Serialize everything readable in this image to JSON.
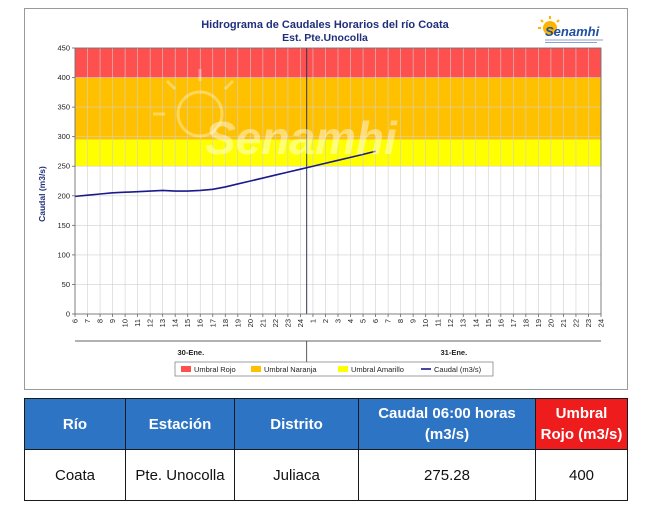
{
  "colors": {
    "rojo": "#ff5050",
    "naranja": "#ffc000",
    "amarillo": "#ffff00",
    "caudal": "#1a1a8c",
    "table_header": "#2e74c5",
    "table_header_red": "#ee1c1c"
  },
  "logo": {
    "text": "Senamhi",
    "icon": "sun-icon"
  },
  "watermark": "Senamhi",
  "chart_data": {
    "type": "line",
    "title": "Hidrograma de Caudales Horarios del río Coata",
    "subtitle": "Est. Pte.Unocolla",
    "ylabel": "Caudal (m3/s)",
    "xlabel": "",
    "ylim": [
      0,
      450
    ],
    "yticks": [
      0,
      50,
      100,
      150,
      200,
      250,
      300,
      350,
      400,
      450
    ],
    "xtick_labels": [
      "6",
      "7",
      "8",
      "9",
      "10",
      "11",
      "12",
      "13",
      "14",
      "15",
      "16",
      "17",
      "18",
      "19",
      "20",
      "21",
      "22",
      "23",
      "24",
      "1",
      "2",
      "3",
      "4",
      "5",
      "6",
      "7",
      "8",
      "9",
      "10",
      "11",
      "12",
      "13",
      "14",
      "15",
      "16",
      "17",
      "18",
      "19",
      "20",
      "21",
      "22",
      "23",
      "24"
    ],
    "day_labels": [
      "30-Ene.",
      "31-Ene."
    ],
    "day_split_index": 19,
    "grid": true,
    "bands": [
      {
        "name": "Umbral Rojo",
        "from": 400,
        "to": 450,
        "color": "#ff5050"
      },
      {
        "name": "Umbral Naranja",
        "from": 295,
        "to": 400,
        "color": "#ffc000"
      },
      {
        "name": "Umbral Amarillo",
        "from": 250,
        "to": 295,
        "color": "#ffff00"
      }
    ],
    "series": [
      {
        "name": "Caudal (m3/s)",
        "color": "#1a1a8c",
        "x_index": [
          0,
          1,
          2,
          3,
          4,
          5,
          6,
          7,
          8,
          9,
          10,
          11,
          12,
          13,
          14,
          15,
          16,
          17,
          18,
          19,
          20,
          21,
          22,
          23,
          24
        ],
        "values": [
          199,
          201,
          203,
          205,
          206,
          207,
          208,
          209,
          208,
          208,
          209,
          211,
          215,
          220,
          225,
          230,
          235,
          240,
          245,
          250,
          255,
          260,
          265,
          270,
          275.28
        ]
      }
    ],
    "legend": {
      "placement": "bottom",
      "entries": [
        "Umbral Rojo",
        "Umbral Naranja",
        "Umbral Amarillo",
        "Caudal (m3/s)"
      ]
    }
  },
  "table": {
    "headers": [
      "Río",
      "Estación",
      "Distrito",
      "Caudal 06:00 horas (m3/s)",
      "Umbral Rojo (m3/s)"
    ],
    "row": [
      "Coata",
      "Pte. Unocolla",
      "Juliaca",
      "275.28",
      "400"
    ]
  }
}
